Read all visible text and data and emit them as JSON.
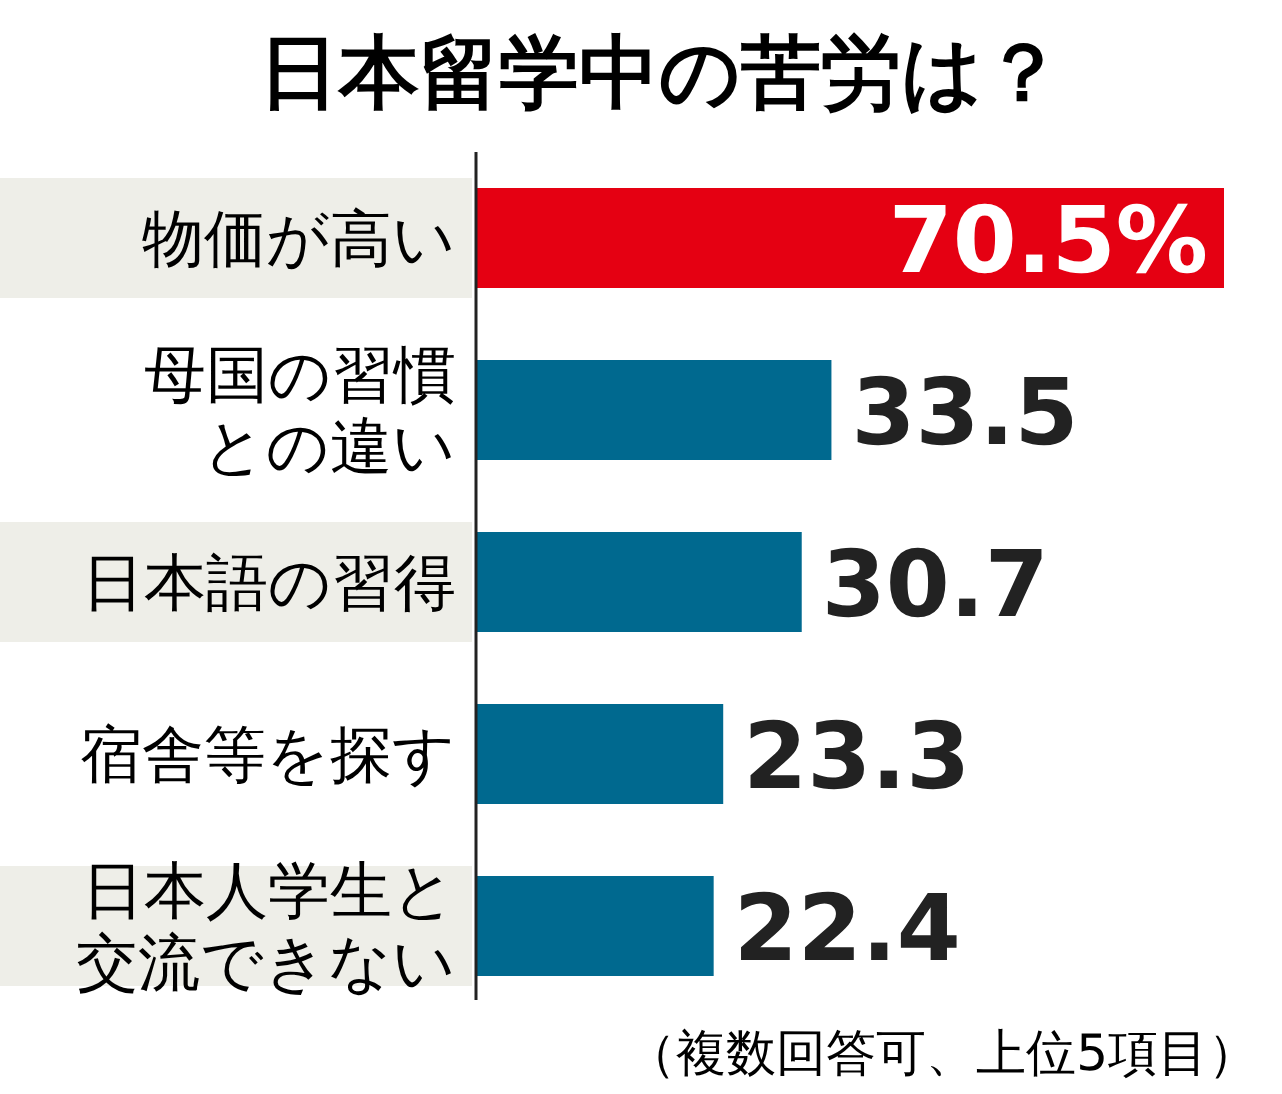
{
  "chart_data": {
    "type": "bar",
    "orientation": "horizontal",
    "title": "日本留学中の苦労は？",
    "categories": [
      "物価が高い",
      "母国の習慣との違い",
      "日本語の習得",
      "宿舎等を探す",
      "日本人学生と交流できない"
    ],
    "values": [
      70.5,
      33.5,
      30.7,
      23.3,
      22.4
    ],
    "colors": [
      "#e50012",
      "#00698f",
      "#00698f",
      "#00698f",
      "#00698f"
    ],
    "value_labels": [
      "70.5%",
      "33.5",
      "30.7",
      "23.3",
      "22.4"
    ],
    "annotations": [
      "（複数回答可、上位5項目）"
    ]
  }
}
